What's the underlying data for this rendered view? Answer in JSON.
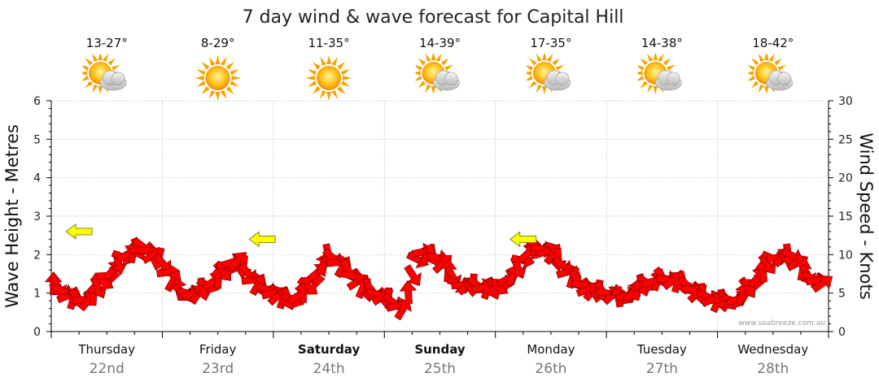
{
  "chart_data": {
    "type": "line",
    "title": "7 day wind & wave forecast for Capital Hill",
    "ylabel_left": "Wave Height - Metres",
    "ylabel_right": "Wind Speed - Knots",
    "ylim_left": [
      0,
      6
    ],
    "ylim_right": [
      0,
      30
    ],
    "yticks_left": [
      "0",
      "1",
      "2",
      "3",
      "4",
      "5",
      "6"
    ],
    "yticks_right": [
      "0",
      "5",
      "10",
      "15",
      "20",
      "25",
      "30"
    ],
    "credit": "www.seabreeze.com.au",
    "colors": {
      "wind_arrow": "#ff0000",
      "wave_arrow": "#ffff00",
      "grid": "#999999",
      "axis": "#000000"
    },
    "days": [
      {
        "name": "Thursday",
        "date": "22nd",
        "temp": "13-27°",
        "icon": "partly-cloudy-icon",
        "bold": false
      },
      {
        "name": "Friday",
        "date": "23rd",
        "temp": "8-29°",
        "icon": "sun-icon",
        "bold": false
      },
      {
        "name": "Saturday",
        "date": "24th",
        "temp": "11-35°",
        "icon": "sun-icon",
        "bold": true
      },
      {
        "name": "Sunday",
        "date": "25th",
        "temp": "14-39°",
        "icon": "partly-cloudy-icon",
        "bold": true
      },
      {
        "name": "Monday",
        "date": "26th",
        "temp": "17-35°",
        "icon": "partly-cloudy-icon",
        "bold": false
      },
      {
        "name": "Tuesday",
        "date": "27th",
        "temp": "14-38°",
        "icon": "partly-cloudy-icon",
        "bold": false
      },
      {
        "name": "Wednesday",
        "date": "28th",
        "temp": "18-42°",
        "icon": "partly-cloudy-icon",
        "bold": false
      }
    ],
    "series": [
      {
        "name": "Wind Speed",
        "axis": "right",
        "day_index": [
          0,
          0.17,
          0.33,
          0.5,
          0.67,
          0.83,
          1,
          1.17,
          1.33,
          1.5,
          1.67,
          1.83,
          2,
          2.17,
          2.33,
          2.5,
          2.67,
          2.83,
          3,
          3.17,
          3.33,
          3.5,
          3.67,
          3.83,
          4,
          4.17,
          4.33,
          4.5,
          4.67,
          4.83,
          5,
          5.17,
          5.33,
          5.5,
          5.67,
          5.83,
          6,
          6.17,
          6.33,
          6.5,
          6.67,
          6.83,
          7
        ],
        "values": [
          6.5,
          4.5,
          4,
          7,
          10,
          11,
          9,
          5,
          5,
          7,
          9.5,
          6.5,
          5,
          4,
          6,
          10,
          8,
          5.5,
          4.5,
          3,
          10.5,
          9.5,
          6,
          6,
          5.5,
          7.5,
          11,
          10.5,
          7.5,
          5.5,
          5,
          4.5,
          6,
          7,
          6.5,
          5,
          4,
          4,
          6.5,
          9.5,
          10,
          7,
          6
        ]
      },
      {
        "name": "Wave Height",
        "axis": "left",
        "day_index": [
          0.25,
          1.9,
          4.25
        ],
        "values": [
          2.6,
          2.4,
          2.4
        ]
      }
    ],
    "ylabel": "Wave Height - Metres",
    "xlabel": ""
  }
}
